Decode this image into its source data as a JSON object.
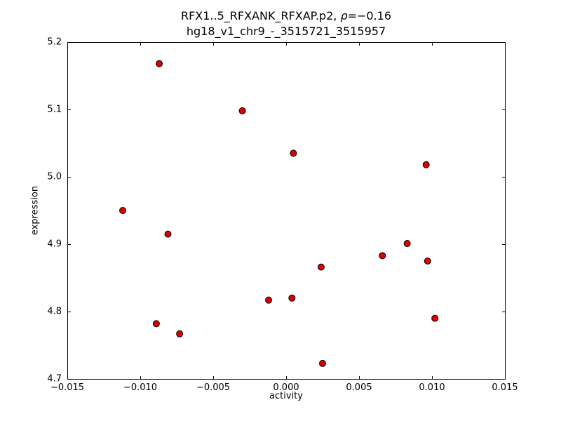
{
  "chart_data": {
    "type": "scatter",
    "title_prefix": "RFX1..5_RFXANK_RFXAP.p2, ",
    "title_rho_symbol": "ρ",
    "title_rho_value": "=−0.16",
    "title_line2": "hg18_v1_chr9_-_3515721_3515957",
    "xlabel": "activity",
    "ylabel": "expression",
    "xlim": [
      -0.015,
      0.015
    ],
    "ylim": [
      4.7,
      5.2
    ],
    "x_ticks": [
      "−0.015",
      "−0.010",
      "−0.005",
      "0.000",
      "0.005",
      "0.010",
      "0.015"
    ],
    "x_tick_values": [
      -0.015,
      -0.01,
      -0.005,
      0.0,
      0.005,
      0.01,
      0.015
    ],
    "y_ticks": [
      "4.7",
      "4.8",
      "4.9",
      "5.0",
      "5.1",
      "5.2"
    ],
    "y_tick_values": [
      4.7,
      4.8,
      4.9,
      5.0,
      5.1,
      5.2
    ],
    "grid": false,
    "legend": "none",
    "frame_color": "#000000",
    "marker": {
      "shape": "circle",
      "fill": "#dd0000",
      "edge": "#000000",
      "radius": 4.5
    },
    "points": [
      {
        "x": -0.0087,
        "y": 5.168
      },
      {
        "x": -0.003,
        "y": 5.098
      },
      {
        "x": 0.0005,
        "y": 5.035
      },
      {
        "x": 0.0096,
        "y": 5.018
      },
      {
        "x": -0.0112,
        "y": 4.95
      },
      {
        "x": -0.0081,
        "y": 4.915
      },
      {
        "x": 0.0083,
        "y": 4.901
      },
      {
        "x": 0.0066,
        "y": 4.883
      },
      {
        "x": 0.0097,
        "y": 4.875
      },
      {
        "x": 0.0024,
        "y": 4.866
      },
      {
        "x": -0.0012,
        "y": 4.817
      },
      {
        "x": 0.0004,
        "y": 4.82
      },
      {
        "x": 0.0102,
        "y": 4.79
      },
      {
        "x": -0.0089,
        "y": 4.782
      },
      {
        "x": -0.0073,
        "y": 4.767
      },
      {
        "x": 0.0025,
        "y": 4.723
      }
    ]
  }
}
